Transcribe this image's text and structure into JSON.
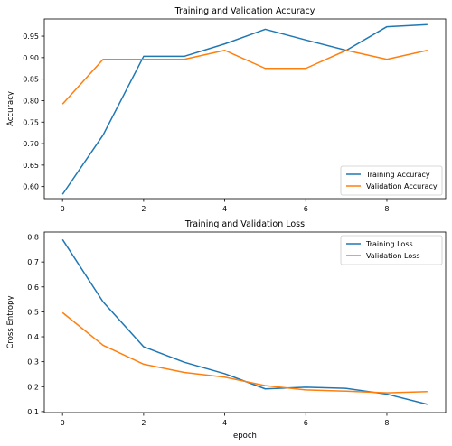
{
  "colors": {
    "training": "#1f77b4",
    "validation": "#ff7f0e",
    "axis": "#000000",
    "legend_border": "#cccccc"
  },
  "chart_data": [
    {
      "type": "line",
      "title": "Training and Validation Accuracy",
      "xlabel": "",
      "ylabel": "Accuracy",
      "x": [
        0,
        1,
        2,
        3,
        4,
        5,
        6,
        7,
        8,
        9
      ],
      "xlim": [
        -0.45,
        9.45
      ],
      "ylim": [
        0.572,
        0.99
      ],
      "xticks": [
        0,
        2,
        4,
        6,
        8
      ],
      "yticks": [
        0.6,
        0.65,
        0.7,
        0.75,
        0.8,
        0.85,
        0.9,
        0.95
      ],
      "ytick_labels": [
        "0.60",
        "0.65",
        "0.70",
        "0.75",
        "0.80",
        "0.85",
        "0.90",
        "0.95"
      ],
      "legend_position": "lower right",
      "grid": false,
      "series": [
        {
          "name": "Training Accuracy",
          "color_key": "training",
          "values": [
            0.582,
            0.72,
            0.903,
            0.903,
            0.932,
            0.966,
            0.941,
            0.917,
            0.972,
            0.977
          ]
        },
        {
          "name": "Validation Accuracy",
          "color_key": "validation",
          "values": [
            0.792,
            0.896,
            0.896,
            0.896,
            0.917,
            0.875,
            0.875,
            0.917,
            0.896,
            0.917
          ]
        }
      ]
    },
    {
      "type": "line",
      "title": "Training and Validation Loss",
      "xlabel": "epoch",
      "ylabel": "Cross Entropy",
      "x": [
        0,
        1,
        2,
        3,
        4,
        5,
        6,
        7,
        8,
        9
      ],
      "xlim": [
        -0.45,
        9.45
      ],
      "ylim": [
        0.096,
        0.82
      ],
      "xticks": [
        0,
        2,
        4,
        6,
        8
      ],
      "yticks": [
        0.1,
        0.2,
        0.3,
        0.4,
        0.5,
        0.6,
        0.7,
        0.8
      ],
      "ytick_labels": [
        "0.1",
        "0.2",
        "0.3",
        "0.4",
        "0.5",
        "0.6",
        "0.7",
        "0.8"
      ],
      "legend_position": "upper right",
      "grid": false,
      "series": [
        {
          "name": "Training Loss",
          "color_key": "training",
          "values": [
            0.79,
            0.54,
            0.36,
            0.298,
            0.252,
            0.191,
            0.198,
            0.193,
            0.17,
            0.129
          ]
        },
        {
          "name": "Validation Loss",
          "color_key": "validation",
          "values": [
            0.497,
            0.366,
            0.29,
            0.257,
            0.238,
            0.204,
            0.187,
            0.182,
            0.175,
            0.18
          ]
        }
      ]
    }
  ]
}
